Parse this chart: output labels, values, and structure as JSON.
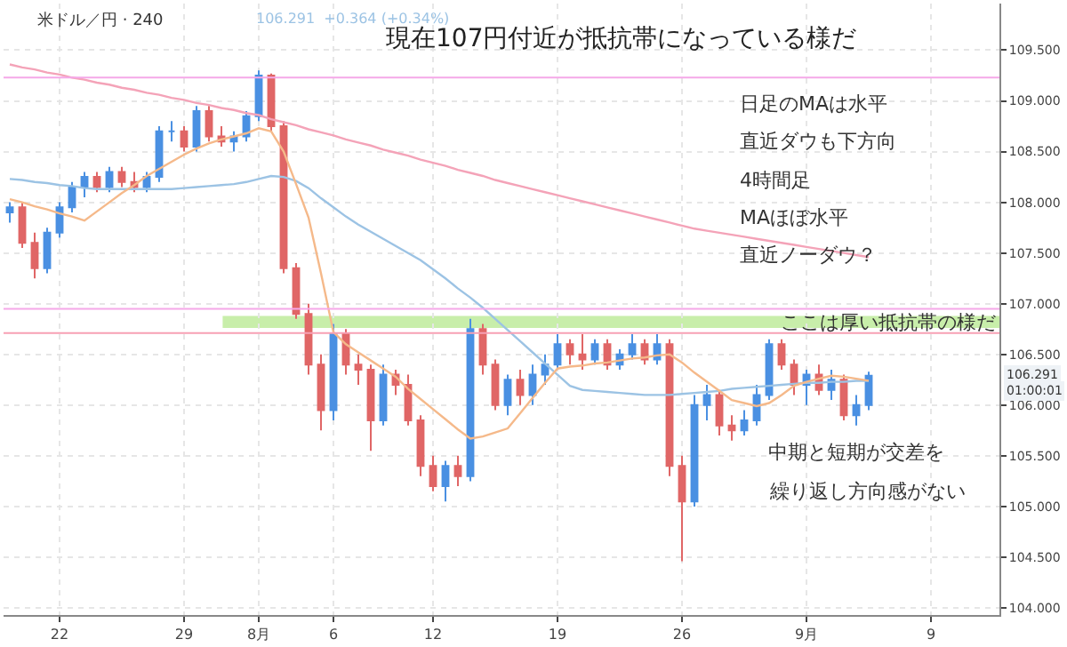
{
  "chart_data": {
    "type": "candlestick",
    "title": "現在107円付近が抵抗帯になっている様だ",
    "categories": [
      null,
      null,
      null,
      null,
      "22",
      null,
      null,
      null,
      null,
      null,
      null,
      null,
      null,
      null,
      "29",
      null,
      null,
      null,
      null,
      null,
      "8月",
      null,
      null,
      null,
      null,
      null,
      "6",
      null,
      null,
      null,
      null,
      null,
      null,
      null,
      "12",
      null,
      null,
      null,
      null,
      null,
      null,
      null,
      null,
      null,
      "19",
      null,
      null,
      null,
      null,
      null,
      null,
      null,
      null,
      null,
      "26",
      null,
      null,
      null,
      null,
      null,
      null,
      null,
      null,
      null,
      "9月",
      null,
      null,
      null,
      null,
      null,
      null,
      null,
      null,
      null,
      "9",
      null,
      null,
      null,
      null,
      null
    ],
    "ylim": [
      103.93,
      109.96
    ],
    "yticks": [
      {
        "value": 104,
        "label": "104.000"
      },
      {
        "value": 104.5,
        "label": "104.500"
      },
      {
        "value": 105,
        "label": "105.000"
      },
      {
        "value": 105.5,
        "label": "105.500"
      },
      {
        "value": 106,
        "label": "106.000"
      },
      {
        "value": 106.5,
        "label": "106.500"
      },
      {
        "value": 107,
        "label": "107.000"
      },
      {
        "value": 107.5,
        "label": "107.500"
      },
      {
        "value": 108,
        "label": "108.000"
      },
      {
        "value": 108.5,
        "label": "108.500"
      },
      {
        "value": 109,
        "label": "109.000"
      },
      {
        "value": 109.5,
        "label": "109.500"
      }
    ],
    "grid": true,
    "series": [
      {
        "type": "line",
        "color": "#f4a3b8",
        "values": [
          109.36,
          109.33,
          109.31,
          109.28,
          109.26,
          109.23,
          109.21,
          109.18,
          109.16,
          109.13,
          109.11,
          109.08,
          109.06,
          109.03,
          109.01,
          108.98,
          108.96,
          108.93,
          108.91,
          108.88,
          108.86,
          108.82,
          108.79,
          108.76,
          108.72,
          108.69,
          108.66,
          108.62,
          108.59,
          108.56,
          108.52,
          108.49,
          108.46,
          108.42,
          108.39,
          108.36,
          108.32,
          108.29,
          108.26,
          108.22,
          108.19,
          108.16,
          108.13,
          108.1,
          108.07,
          108.04,
          108.01,
          107.98,
          107.95,
          107.92,
          107.89,
          107.86,
          107.83,
          107.8,
          107.77,
          107.74,
          107.72,
          107.7,
          107.68,
          107.66,
          107.64,
          107.62,
          107.6,
          107.58,
          107.56,
          107.54,
          107.52,
          107.5,
          107.48,
          107.46,
          null,
          null,
          null,
          null,
          null,
          null,
          null,
          null,
          null,
          null
        ]
      },
      {
        "type": "line",
        "color": "#9cc3e4",
        "values": [
          108.23,
          108.22,
          108.2,
          108.19,
          108.17,
          108.16,
          108.14,
          108.13,
          108.13,
          108.13,
          108.13,
          108.13,
          108.13,
          108.13,
          108.14,
          108.15,
          108.16,
          108.17,
          108.18,
          108.2,
          108.23,
          108.26,
          108.25,
          108.21,
          108.14,
          108.04,
          107.95,
          107.86,
          107.78,
          107.71,
          107.64,
          107.57,
          107.5,
          107.43,
          107.34,
          107.25,
          107.15,
          107.06,
          106.96,
          106.85,
          106.74,
          106.63,
          106.52,
          106.41,
          106.3,
          106.19,
          106.15,
          106.14,
          106.13,
          106.12,
          106.11,
          106.1,
          106.1,
          106.1,
          106.11,
          106.12,
          106.13,
          106.14,
          106.16,
          106.17,
          106.18,
          106.19,
          106.2,
          106.21,
          106.22,
          106.22,
          106.23,
          106.23,
          106.24,
          106.24,
          null,
          null,
          null,
          null,
          null,
          null,
          null,
          null,
          null,
          null
        ]
      },
      {
        "type": "line",
        "color": "#f5b98a",
        "values": [
          108.03,
          108.0,
          107.96,
          107.93,
          107.89,
          107.86,
          107.82,
          107.91,
          108.0,
          108.09,
          108.17,
          108.26,
          108.33,
          108.4,
          108.47,
          108.53,
          108.58,
          108.62,
          108.65,
          108.68,
          108.73,
          108.7,
          108.5,
          108.18,
          107.85,
          107.3,
          106.72,
          106.6,
          106.52,
          106.44,
          106.36,
          106.28,
          106.16,
          106.06,
          105.96,
          105.86,
          105.76,
          105.67,
          105.69,
          105.73,
          105.77,
          105.92,
          106.07,
          106.22,
          106.36,
          106.38,
          106.39,
          106.41,
          106.42,
          106.44,
          106.46,
          106.47,
          106.49,
          106.5,
          106.42,
          106.32,
          106.23,
          106.14,
          106.05,
          106.02,
          105.99,
          106.02,
          106.1,
          106.19,
          106.23,
          106.26,
          106.29,
          106.28,
          106.26,
          106.24,
          null,
          null,
          null,
          null,
          null,
          null,
          null,
          null,
          null,
          null
        ]
      },
      {
        "colors": [
          "#4a90e2",
          "#e06666",
          "#e06666",
          "#4a90e2",
          "#4a90e2",
          "#4a90e2",
          "#4a90e2",
          "#e06666",
          "#4a90e2",
          "#e06666",
          "#e06666",
          "#4a90e2",
          "#4a90e2",
          "#4a90e2",
          "#e06666",
          "#4a90e2",
          "#e06666",
          "#e06666",
          "#4a90e2",
          "#4a90e2",
          "#4a90e2",
          "#e06666",
          "#e06666",
          "#e06666",
          "#e06666",
          "#e06666",
          "#4a90e2",
          "#e06666",
          "#e06666",
          "#e06666",
          "#4a90e2",
          "#e06666",
          "#e06666",
          "#e06666",
          "#e06666",
          "#4a90e2",
          "#e06666",
          "#4a90e2",
          "#e06666",
          "#e06666",
          "#4a90e2",
          "#e06666",
          "#4a90e2",
          "#4a90e2",
          "#4a90e2",
          "#e06666",
          "#e06666",
          "#4a90e2",
          "#e06666",
          "#4a90e2",
          "#4a90e2",
          "#e06666",
          "#4a90e2",
          "#e06666",
          "#e06666",
          "#4a90e2",
          "#4a90e2",
          "#e06666",
          "#e06666",
          "#4a90e2",
          "#4a90e2",
          "#4a90e2",
          "#e06666",
          "#e06666",
          "#4a90e2",
          "#e06666",
          "#4a90e2",
          "#e06666",
          "#4a90e2",
          "#4a90e2",
          null,
          null,
          null,
          null,
          null,
          null,
          null,
          null,
          null,
          null
        ],
        "ohlc": [
          [
            107.9,
            108.0,
            107.8,
            107.95
          ],
          [
            107.95,
            108.0,
            107.55,
            107.6
          ],
          [
            107.6,
            107.7,
            107.25,
            107.35
          ],
          [
            107.35,
            107.75,
            107.3,
            107.7
          ],
          [
            107.7,
            108.0,
            107.65,
            107.95
          ],
          [
            107.95,
            108.2,
            107.9,
            108.15
          ],
          [
            108.15,
            108.3,
            108.05,
            108.25
          ],
          [
            108.25,
            108.3,
            108.1,
            108.15
          ],
          [
            108.15,
            108.35,
            108.1,
            108.3
          ],
          [
            108.3,
            108.35,
            108.15,
            108.2
          ],
          [
            108.2,
            108.3,
            108.1,
            108.15
          ],
          [
            108.15,
            108.3,
            108.1,
            108.25
          ],
          [
            108.25,
            108.75,
            108.2,
            108.7
          ],
          [
            108.7,
            108.8,
            108.6,
            108.7
          ],
          [
            108.7,
            108.75,
            108.5,
            108.55
          ],
          [
            108.55,
            108.95,
            108.5,
            108.9
          ],
          [
            108.9,
            108.95,
            108.6,
            108.65
          ],
          [
            108.65,
            108.75,
            108.55,
            108.6
          ],
          [
            108.6,
            108.7,
            108.5,
            108.65
          ],
          [
            108.65,
            108.9,
            108.6,
            108.85
          ],
          [
            108.85,
            109.3,
            108.8,
            109.25
          ],
          [
            109.25,
            109.27,
            108.7,
            108.75
          ],
          [
            108.75,
            108.8,
            107.3,
            107.35
          ],
          [
            107.35,
            107.4,
            106.85,
            106.9
          ],
          [
            106.9,
            107.0,
            106.3,
            106.4
          ],
          [
            106.4,
            106.5,
            105.75,
            105.95
          ],
          [
            105.95,
            106.8,
            105.85,
            106.7
          ],
          [
            106.7,
            106.75,
            106.3,
            106.4
          ],
          [
            106.4,
            106.5,
            106.2,
            106.35
          ],
          [
            106.35,
            106.4,
            105.55,
            105.85
          ],
          [
            105.85,
            106.4,
            105.8,
            106.3
          ],
          [
            106.3,
            106.35,
            106.1,
            106.2
          ],
          [
            106.2,
            106.3,
            105.8,
            105.85
          ],
          [
            105.85,
            105.9,
            105.3,
            105.4
          ],
          [
            105.4,
            105.5,
            105.15,
            105.2
          ],
          [
            105.2,
            105.45,
            105.05,
            105.4
          ],
          [
            105.4,
            105.5,
            105.2,
            105.3
          ],
          [
            105.3,
            106.85,
            105.25,
            106.75
          ],
          [
            106.75,
            106.8,
            106.3,
            106.4
          ],
          [
            106.4,
            106.45,
            105.95,
            106.0
          ],
          [
            106.0,
            106.3,
            105.9,
            106.25
          ],
          [
            106.25,
            106.35,
            106.0,
            106.1
          ],
          [
            106.1,
            106.4,
            106.0,
            106.3
          ],
          [
            106.3,
            106.5,
            106.2,
            106.4
          ],
          [
            106.4,
            106.7,
            106.35,
            106.6
          ],
          [
            106.6,
            106.65,
            106.4,
            106.5
          ],
          [
            106.5,
            106.7,
            106.35,
            106.45
          ],
          [
            106.45,
            106.65,
            106.4,
            106.6
          ],
          [
            106.6,
            106.65,
            106.35,
            106.4
          ],
          [
            106.4,
            106.55,
            106.35,
            106.5
          ],
          [
            106.5,
            106.7,
            106.45,
            106.6
          ],
          [
            106.6,
            106.65,
            106.4,
            106.45
          ],
          [
            106.45,
            106.7,
            106.4,
            106.6
          ],
          [
            106.6,
            106.65,
            105.3,
            105.4
          ],
          [
            105.4,
            105.5,
            104.46,
            105.05
          ],
          [
            105.05,
            106.1,
            105.0,
            106.0
          ],
          [
            106.0,
            106.2,
            105.85,
            106.1
          ],
          [
            106.1,
            106.15,
            105.7,
            105.8
          ],
          [
            105.8,
            105.9,
            105.65,
            105.75
          ],
          [
            105.75,
            105.95,
            105.7,
            105.85
          ],
          [
            105.85,
            106.2,
            105.8,
            106.1
          ],
          [
            106.1,
            106.65,
            106.05,
            106.6
          ],
          [
            106.6,
            106.65,
            106.35,
            106.4
          ],
          [
            106.4,
            106.45,
            106.1,
            106.2
          ],
          [
            106.2,
            106.35,
            106.0,
            106.3
          ],
          [
            106.3,
            106.4,
            106.1,
            106.15
          ],
          [
            106.15,
            106.35,
            106.05,
            106.25
          ],
          [
            106.25,
            106.3,
            105.85,
            105.9
          ],
          [
            105.9,
            106.1,
            105.8,
            106.0
          ],
          [
            106.0,
            106.33,
            105.95,
            106.29
          ],
          null,
          null,
          null,
          null,
          null,
          null,
          null,
          null,
          null,
          null
        ]
      }
    ],
    "ref_lines": [
      {
        "axis": "y",
        "value": 109.23,
        "color": "#f5a8e8"
      },
      {
        "axis": "y",
        "value": 106.95,
        "color": "#f5a8e8"
      },
      {
        "axis": "y",
        "value": 106.71,
        "color": "#f7a0b4"
      }
    ],
    "bands": [
      {
        "axis": "y",
        "from": 106.76,
        "to": 106.88,
        "color": "#c8eeaa",
        "label": "ここは厚い抵抗帯の様だ"
      }
    ],
    "annotations": [
      "米ドル／円 · 240",
      "106.291  +0.364 (+0.34%)",
      "日足のMAは水平",
      "直近ダウも下方向",
      "4時間足",
      "MAほぼ水平",
      "直近ノーダウ？",
      "中期と短期が交差を",
      "繰り返し方向感がない",
      "106.291",
      "01:00:01"
    ]
  }
}
